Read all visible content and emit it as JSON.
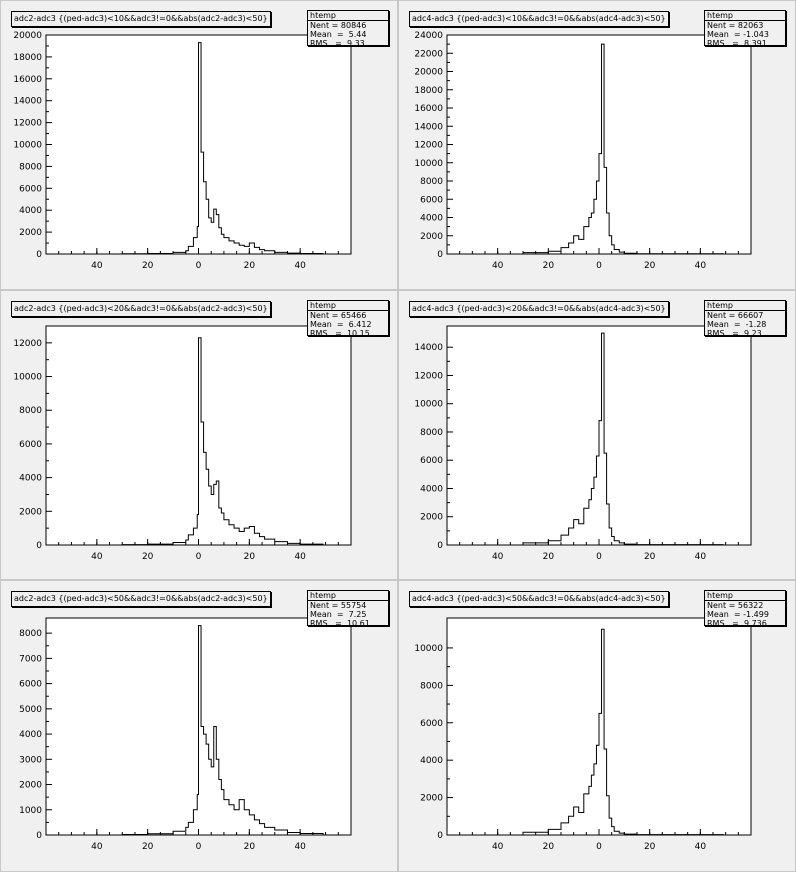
{
  "canvas": {
    "background": "#ffffff",
    "pad_color": "#f0f0f0",
    "frame_color": "#ffffff",
    "line_color": "#000000"
  },
  "pads": [
    {
      "title": "adc2-adc3 {(ped-adc3)<10&&adc3!=0&&abs(adc2-adc3)<50}",
      "stats": {
        "name": "htemp",
        "entries_label": "Nent = 80846",
        "mean_label": "Mean  =  5.44",
        "rms_label": "RMS   =  9.33"
      }
    },
    {
      "title": "adc4-adc3 {(ped-adc3)<10&&adc3!=0&&abs(adc4-adc3)<50}",
      "stats": {
        "name": "htemp",
        "entries_label": "Nent = 82063",
        "mean_label": "Mean  = -1.043",
        "rms_label": "RMS   =  8.391"
      }
    },
    {
      "title": "adc2-adc3 {(ped-adc3)<20&&adc3!=0&&abs(adc2-adc3)<50}",
      "stats": {
        "name": "htemp",
        "entries_label": "Nent = 65466",
        "mean_label": "Mean  =  6.412",
        "rms_label": "RMS   =  10.15"
      }
    },
    {
      "title": "adc4-adc3 {(ped-adc3)<20&&adc3!=0&&abs(adc4-adc3)<50}",
      "stats": {
        "name": "htemp",
        "entries_label": "Nent = 66607",
        "mean_label": "Mean  =  -1.28",
        "rms_label": "RMS   =  9.23"
      }
    },
    {
      "title": "adc2-adc3 {(ped-adc3)<50&&adc3!=0&&abs(adc2-adc3)<50}",
      "stats": {
        "name": "htemp",
        "entries_label": "Nent = 55754",
        "mean_label": "Mean  =  7.25",
        "rms_label": "RMS   =  10.61"
      }
    },
    {
      "title": "adc4-adc3 {(ped-adc3)<50&&adc3!=0&&abs(adc4-adc3)<50}",
      "stats": {
        "name": "htemp",
        "entries_label": "Nent = 56322",
        "mean_label": "Mean  = -1.499",
        "rms_label": "RMS   =  9.736"
      }
    }
  ],
  "chart_data": [
    {
      "type": "histogram",
      "variant": "adc2",
      "xlim": [
        -60,
        60
      ],
      "ylim": [
        0,
        20000
      ],
      "x_ticks": [
        -40,
        -20,
        0,
        20,
        40
      ],
      "x_tick_labels": [
        "40",
        "20",
        "0",
        "20",
        "40"
      ],
      "y_ticks": [
        0,
        2000,
        4000,
        6000,
        8000,
        10000,
        12000,
        14000,
        16000,
        18000,
        20000
      ],
      "y_tick_labels": [
        "0",
        "2000",
        "4000",
        "6000",
        "8000",
        "10000",
        "12000",
        "14000",
        "16000",
        "18000",
        "20000"
      ],
      "bin_width": 1.5,
      "bins": [
        [
          -50,
          0
        ],
        [
          -30,
          20
        ],
        [
          -20,
          50
        ],
        [
          -10,
          150
        ],
        [
          -5,
          300
        ],
        [
          -4,
          700
        ],
        [
          -2,
          1500
        ],
        [
          -0.5,
          2500
        ],
        [
          0,
          19300
        ],
        [
          1,
          9300
        ],
        [
          2,
          6600
        ],
        [
          3,
          5000
        ],
        [
          4,
          3300
        ],
        [
          5,
          2900
        ],
        [
          6,
          4100
        ],
        [
          7,
          3600
        ],
        [
          8,
          2400
        ],
        [
          9,
          1800
        ],
        [
          10,
          1500
        ],
        [
          12,
          1200
        ],
        [
          14,
          1000
        ],
        [
          16,
          800
        ],
        [
          18,
          700
        ],
        [
          20,
          1000
        ],
        [
          22,
          600
        ],
        [
          24,
          400
        ],
        [
          26,
          300
        ],
        [
          30,
          150
        ],
        [
          35,
          80
        ],
        [
          40,
          40
        ],
        [
          49,
          0
        ]
      ]
    },
    {
      "type": "histogram",
      "variant": "adc4",
      "xlim": [
        -60,
        60
      ],
      "ylim": [
        0,
        24000
      ],
      "x_ticks": [
        -40,
        -20,
        0,
        20,
        40
      ],
      "x_tick_labels": [
        "40",
        "20",
        "0",
        "20",
        "40"
      ],
      "y_ticks": [
        0,
        2000,
        4000,
        6000,
        8000,
        10000,
        12000,
        14000,
        16000,
        18000,
        20000,
        22000,
        24000
      ],
      "y_tick_labels": [
        "0",
        "2000",
        "4000",
        "6000",
        "8000",
        "10000",
        "12000",
        "14000",
        "16000",
        "18000",
        "20000",
        "22000",
        "24000"
      ],
      "bin_width": 1.5,
      "bins": [
        [
          -50,
          0
        ],
        [
          -30,
          150
        ],
        [
          -20,
          300
        ],
        [
          -15,
          700
        ],
        [
          -12,
          1200
        ],
        [
          -10,
          2000
        ],
        [
          -8,
          1600
        ],
        [
          -6,
          3000
        ],
        [
          -4,
          4000
        ],
        [
          -3,
          4500
        ],
        [
          -2,
          6000
        ],
        [
          -1,
          8000
        ],
        [
          0,
          11000
        ],
        [
          1,
          23000
        ],
        [
          2,
          9500
        ],
        [
          3,
          4500
        ],
        [
          4,
          2000
        ],
        [
          5,
          1000
        ],
        [
          6,
          500
        ],
        [
          8,
          200
        ],
        [
          10,
          80
        ],
        [
          15,
          30
        ],
        [
          49,
          0
        ]
      ]
    },
    {
      "type": "histogram",
      "variant": "adc2",
      "xlim": [
        -60,
        60
      ],
      "ylim": [
        0,
        13000
      ],
      "x_ticks": [
        -40,
        -20,
        0,
        20,
        40
      ],
      "x_tick_labels": [
        "40",
        "20",
        "0",
        "20",
        "40"
      ],
      "y_ticks": [
        0,
        2000,
        4000,
        6000,
        8000,
        10000,
        12000
      ],
      "y_tick_labels": [
        "0",
        "2000",
        "4000",
        "6000",
        "8000",
        "10000",
        "12000"
      ],
      "bin_width": 1.5,
      "bins": [
        [
          -50,
          0
        ],
        [
          -30,
          20
        ],
        [
          -20,
          50
        ],
        [
          -10,
          150
        ],
        [
          -5,
          300
        ],
        [
          -4,
          600
        ],
        [
          -2,
          1000
        ],
        [
          -0.5,
          1800
        ],
        [
          0,
          12300
        ],
        [
          1,
          7300
        ],
        [
          2,
          5500
        ],
        [
          3,
          4500
        ],
        [
          4,
          3500
        ],
        [
          5,
          3000
        ],
        [
          6,
          3600
        ],
        [
          7,
          3800
        ],
        [
          8,
          2200
        ],
        [
          9,
          1900
        ],
        [
          10,
          1500
        ],
        [
          12,
          1200
        ],
        [
          14,
          1000
        ],
        [
          16,
          800
        ],
        [
          18,
          1000
        ],
        [
          20,
          1100
        ],
        [
          22,
          700
        ],
        [
          24,
          500
        ],
        [
          26,
          350
        ],
        [
          30,
          200
        ],
        [
          35,
          100
        ],
        [
          40,
          50
        ],
        [
          49,
          0
        ]
      ]
    },
    {
      "type": "histogram",
      "variant": "adc4",
      "xlim": [
        -60,
        60
      ],
      "ylim": [
        0,
        15500
      ],
      "x_ticks": [
        -40,
        -20,
        0,
        20,
        40
      ],
      "x_tick_labels": [
        "40",
        "20",
        "0",
        "20",
        "40"
      ],
      "y_ticks": [
        0,
        2000,
        4000,
        6000,
        8000,
        10000,
        12000,
        14000
      ],
      "y_tick_labels": [
        "0",
        "2000",
        "4000",
        "6000",
        "8000",
        "10000",
        "12000",
        "14000"
      ],
      "bin_width": 1.5,
      "bins": [
        [
          -50,
          0
        ],
        [
          -30,
          150
        ],
        [
          -20,
          300
        ],
        [
          -15,
          700
        ],
        [
          -12,
          1200
        ],
        [
          -10,
          1800
        ],
        [
          -8,
          1500
        ],
        [
          -6,
          2600
        ],
        [
          -4,
          3200
        ],
        [
          -3,
          4000
        ],
        [
          -2,
          4800
        ],
        [
          -1,
          6300
        ],
        [
          0,
          8800
        ],
        [
          1,
          15000
        ],
        [
          2,
          6500
        ],
        [
          3,
          2900
        ],
        [
          4,
          1200
        ],
        [
          5,
          600
        ],
        [
          6,
          300
        ],
        [
          8,
          150
        ],
        [
          10,
          60
        ],
        [
          15,
          30
        ],
        [
          49,
          0
        ]
      ]
    },
    {
      "type": "histogram",
      "variant": "adc2",
      "xlim": [
        -60,
        60
      ],
      "ylim": [
        0,
        8600
      ],
      "x_ticks": [
        -40,
        -20,
        0,
        20,
        40
      ],
      "x_tick_labels": [
        "40",
        "20",
        "0",
        "20",
        "40"
      ],
      "y_ticks": [
        0,
        1000,
        2000,
        3000,
        4000,
        5000,
        6000,
        7000,
        8000
      ],
      "y_tick_labels": [
        "0",
        "1000",
        "2000",
        "3000",
        "4000",
        "5000",
        "6000",
        "7000",
        "8000"
      ],
      "bin_width": 1.5,
      "bins": [
        [
          -50,
          0
        ],
        [
          -30,
          20
        ],
        [
          -20,
          50
        ],
        [
          -10,
          150
        ],
        [
          -5,
          300
        ],
        [
          -4,
          500
        ],
        [
          -2,
          1000
        ],
        [
          -0.5,
          1600
        ],
        [
          0,
          8300
        ],
        [
          1,
          4300
        ],
        [
          2,
          4000
        ],
        [
          3,
          3600
        ],
        [
          4,
          3000
        ],
        [
          5,
          2700
        ],
        [
          6,
          4300
        ],
        [
          7,
          3000
        ],
        [
          8,
          2200
        ],
        [
          9,
          1800
        ],
        [
          10,
          1400
        ],
        [
          12,
          1200
        ],
        [
          14,
          1000
        ],
        [
          16,
          1400
        ],
        [
          18,
          1000
        ],
        [
          20,
          800
        ],
        [
          22,
          600
        ],
        [
          24,
          450
        ],
        [
          26,
          300
        ],
        [
          30,
          200
        ],
        [
          35,
          100
        ],
        [
          40,
          60
        ],
        [
          49,
          0
        ]
      ]
    },
    {
      "type": "histogram",
      "variant": "adc4",
      "xlim": [
        -60,
        60
      ],
      "ylim": [
        0,
        11600
      ],
      "x_ticks": [
        -40,
        -20,
        0,
        20,
        40
      ],
      "x_tick_labels": [
        "40",
        "20",
        "0",
        "20",
        "40"
      ],
      "y_ticks": [
        0,
        2000,
        4000,
        6000,
        8000,
        10000
      ],
      "y_tick_labels": [
        "0",
        "2000",
        "4000",
        "6000",
        "8000",
        "10000"
      ],
      "bin_width": 1.5,
      "bins": [
        [
          -50,
          0
        ],
        [
          -30,
          150
        ],
        [
          -20,
          300
        ],
        [
          -15,
          650
        ],
        [
          -12,
          1000
        ],
        [
          -10,
          1500
        ],
        [
          -8,
          1200
        ],
        [
          -6,
          2200
        ],
        [
          -4,
          2600
        ],
        [
          -3,
          3200
        ],
        [
          -2,
          3800
        ],
        [
          -1,
          4800
        ],
        [
          0,
          6500
        ],
        [
          1,
          11000
        ],
        [
          2,
          4600
        ],
        [
          3,
          2100
        ],
        [
          4,
          900
        ],
        [
          5,
          450
        ],
        [
          6,
          200
        ],
        [
          8,
          100
        ],
        [
          10,
          50
        ],
        [
          15,
          20
        ],
        [
          49,
          0
        ]
      ]
    }
  ]
}
